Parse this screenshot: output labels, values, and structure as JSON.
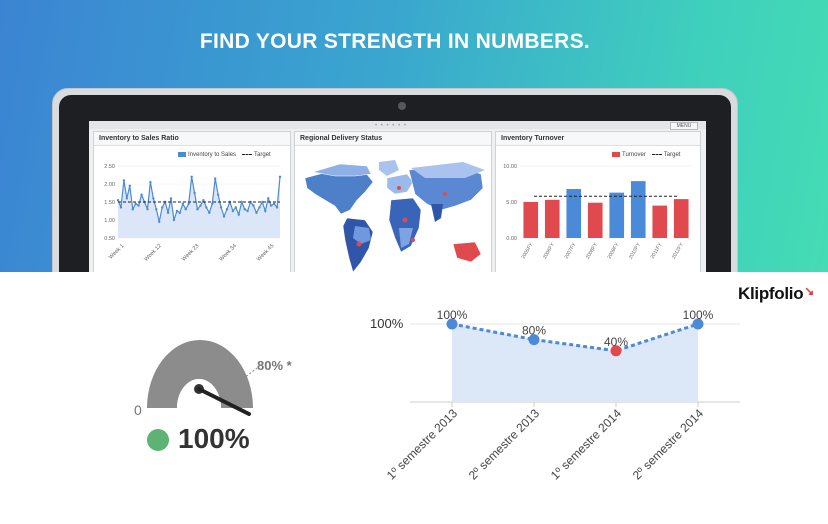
{
  "banner": {
    "headline": "FIND YOUR STRENGTH IN NUMBERS."
  },
  "screen": {
    "menu_label": "MENU",
    "dots": "• • • • • •"
  },
  "panels": {
    "inventory_sales": {
      "title": "Inventory to Sales Ratio",
      "legend_series": "Inventory to Sales",
      "legend_target": "Target",
      "series_color": "#4a8ad8",
      "chart_data": {
        "type": "line",
        "y_ticks": [
          "2.50",
          "2.00",
          "1.50",
          "1.00",
          "0.50"
        ],
        "x_ticks": [
          "Week 1",
          "Week 12",
          "Week 23",
          "Week 34",
          "Week 45"
        ],
        "ylim": [
          0.5,
          2.5
        ],
        "target": 1.5,
        "values": [
          1.55,
          1.35,
          2.1,
          1.6,
          1.95,
          1.3,
          1.45,
          1.4,
          1.7,
          1.5,
          1.3,
          2.05,
          1.6,
          1.3,
          0.95,
          1.35,
          1.5,
          1.2,
          1.6,
          1.0,
          1.25,
          1.2,
          1.45,
          1.3,
          1.45,
          2.2,
          1.75,
          1.3,
          1.4,
          1.55,
          1.35,
          1.2,
          1.45,
          2.15,
          1.7,
          1.35,
          1.1,
          1.3,
          1.5,
          1.25,
          1.35,
          1.15,
          1.5,
          1.3,
          1.25,
          1.5,
          1.4,
          1.2,
          1.35,
          1.5,
          1.25,
          1.6,
          1.4,
          1.45,
          1.35,
          2.2
        ]
      }
    },
    "regional": {
      "title": "Regional Delivery Status"
    },
    "turnover": {
      "title": "Inventory Turnover",
      "legend_series": "Turnover",
      "legend_target": "Target",
      "chart_data": {
        "type": "bar",
        "y_ticks": [
          "10.00",
          "5.00",
          "0.00"
        ],
        "ylim": [
          0,
          10
        ],
        "target": 5.8,
        "categories": [
          "2005FY",
          "2006FY",
          "2007FY",
          "2008FY",
          "2009FY",
          "2010FY",
          "2011FY",
          "2012FY"
        ],
        "values": [
          5.0,
          5.3,
          6.8,
          4.9,
          6.3,
          7.9,
          4.5,
          5.4
        ],
        "colors": [
          "#e04a4f",
          "#e04a4f",
          "#4a8ad8",
          "#e04a4f",
          "#4a8ad8",
          "#4a8ad8",
          "#e04a4f",
          "#e04a4f"
        ]
      }
    }
  },
  "logo": {
    "text": "Klipfolio"
  },
  "gauge": {
    "target_label": "80% *",
    "min_label": "0",
    "status_value": "100%",
    "status_color": "#5cb374",
    "level": 1.0,
    "target": 0.8
  },
  "semester_chart": {
    "y_label": "100%",
    "chart_data": {
      "type": "area",
      "categories": [
        "1º semestre 2013",
        "2º semestre 2013",
        "1º semestre 2014",
        "2º semestre 2014"
      ],
      "values": [
        100,
        80,
        40,
        100
      ],
      "data_labels": [
        "100%",
        "80%",
        "40%",
        "100%"
      ],
      "point_colors": [
        "#4a8ad8",
        "#4a8ad8",
        "#e04a4f",
        "#4a8ad8"
      ]
    }
  }
}
